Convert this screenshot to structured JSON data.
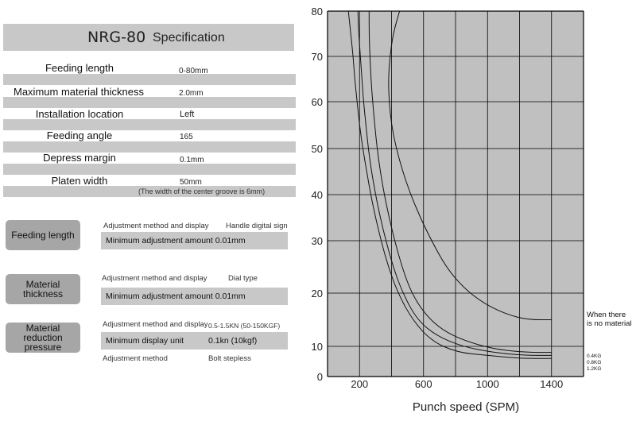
{
  "spec": {
    "model": "NRG-80",
    "heading": "Specification",
    "rows": [
      {
        "label": "Feeding length",
        "value": "0-80mm"
      },
      {
        "label": "Maximum material thickness",
        "value": "2.0mm"
      },
      {
        "label": "Installation location",
        "value": "Left"
      },
      {
        "label": "Feeding angle",
        "value": "165"
      },
      {
        "label": "Depress margin",
        "value": "0.1mm"
      },
      {
        "label": "Platen width",
        "value": "50mm"
      }
    ],
    "platen_note": "(The width of the center groove is 6mm)"
  },
  "adjust": [
    {
      "name": "Feeding length",
      "line1_label": "Adjustment method and display",
      "line1_value": "Handle digital sign",
      "bar_label": "Minimum adjustment amount 0.01mm",
      "bar_value": ""
    },
    {
      "name": "Material thickness",
      "line1_label": "Adjustment method and display",
      "line1_value": "Dial type",
      "bar_label": "Minimum adjustment amount 0.01mm",
      "bar_value": ""
    },
    {
      "name": "Material reduction pressure",
      "line1_label": "Adjustment method and display",
      "line1_value": "0.5-1.5KN (50-150KGF)",
      "bar_label": "Minimum display unit",
      "bar_value": "0.1kn (10kgf)",
      "line3_label": "Adjustment method",
      "line3_value": "Bolt stepless"
    }
  ],
  "chart_data": {
    "type": "line",
    "title": "",
    "xlabel": "Punch speed (SPM)",
    "ylabel": "",
    "xlim": [
      0,
      1600
    ],
    "ylim": [
      0,
      80
    ],
    "x_ticks": [
      "200",
      "600",
      "1000",
      "1400"
    ],
    "y_ticks": [
      "0",
      "10",
      "20",
      "30",
      "40",
      "50",
      "60",
      "70",
      "80"
    ],
    "grid": true,
    "background": "#c0c0c0",
    "series": [
      {
        "name": "When there is no material",
        "points": [
          [
            450,
            80
          ],
          [
            410,
            75
          ],
          [
            390,
            70
          ],
          [
            380,
            65
          ],
          [
            385,
            60
          ],
          [
            400,
            55
          ],
          [
            430,
            50
          ],
          [
            470,
            45
          ],
          [
            520,
            40
          ],
          [
            580,
            35
          ],
          [
            650,
            30
          ],
          [
            740,
            25
          ],
          [
            850,
            21
          ],
          [
            980,
            18
          ],
          [
            1120,
            16
          ],
          [
            1250,
            15
          ],
          [
            1400,
            15
          ]
        ]
      },
      {
        "name": "0.4KG",
        "points": [
          [
            260,
            80
          ],
          [
            260,
            75
          ],
          [
            265,
            70
          ],
          [
            272,
            65
          ],
          [
            282,
            60
          ],
          [
            295,
            55
          ],
          [
            310,
            50
          ],
          [
            330,
            45
          ],
          [
            355,
            40
          ],
          [
            385,
            35
          ],
          [
            420,
            30
          ],
          [
            465,
            25
          ],
          [
            525,
            20
          ],
          [
            610,
            16
          ],
          [
            720,
            13
          ],
          [
            860,
            11
          ],
          [
            1050,
            9
          ],
          [
            1250,
            8
          ],
          [
            1400,
            8
          ]
        ]
      },
      {
        "name": "0.8KG",
        "points": [
          [
            190,
            80
          ],
          [
            195,
            75
          ],
          [
            205,
            70
          ],
          [
            215,
            65
          ],
          [
            225,
            60
          ],
          [
            240,
            55
          ],
          [
            255,
            50
          ],
          [
            275,
            45
          ],
          [
            300,
            40
          ],
          [
            330,
            35
          ],
          [
            365,
            30
          ],
          [
            410,
            25
          ],
          [
            470,
            20
          ],
          [
            560,
            15
          ],
          [
            680,
            12
          ],
          [
            840,
            10
          ],
          [
            1030,
            8
          ],
          [
            1230,
            7
          ],
          [
            1400,
            7
          ]
        ]
      },
      {
        "name": "1.2KG",
        "points": [
          [
            130,
            80
          ],
          [
            145,
            75
          ],
          [
            160,
            70
          ],
          [
            170,
            65
          ],
          [
            185,
            60
          ],
          [
            200,
            55
          ],
          [
            220,
            50
          ],
          [
            245,
            45
          ],
          [
            270,
            40
          ],
          [
            300,
            35
          ],
          [
            335,
            30
          ],
          [
            380,
            25
          ],
          [
            440,
            20
          ],
          [
            530,
            15
          ],
          [
            650,
            11
          ],
          [
            810,
            8
          ],
          [
            1000,
            7
          ],
          [
            1200,
            6
          ],
          [
            1400,
            6
          ]
        ]
      }
    ],
    "annotations": [
      "When there",
      "is no material",
      "0.4KG",
      "0.8KG",
      "1.2KG"
    ]
  }
}
